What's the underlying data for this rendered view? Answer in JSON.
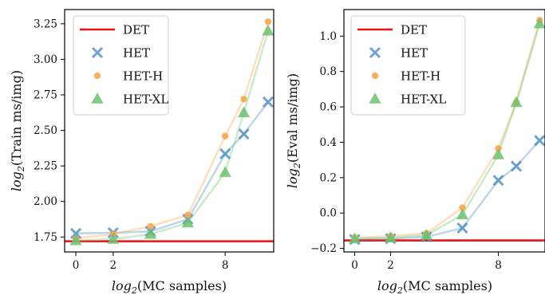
{
  "chart_data": [
    {
      "type": "line",
      "xlabel": "log2(MC samples)",
      "ylabel": "log2(Train ms/img)",
      "xlim": [
        -0.6,
        10.6
      ],
      "ylim": [
        1.645,
        3.35
      ],
      "xticks": [
        0,
        2,
        8
      ],
      "yticks": [
        1.75,
        2.0,
        2.25,
        2.5,
        2.75,
        3.0,
        3.25
      ],
      "ytick_labels": [
        "1.75",
        "2.00",
        "2.25",
        "2.50",
        "2.75",
        "3.00",
        "3.25"
      ],
      "legend_position": "top-left",
      "series": [
        {
          "name": "DET",
          "style": "hline",
          "color": "#ee1111",
          "y": 1.72
        },
        {
          "name": "HET",
          "style": "x",
          "color": "#4a8cc4",
          "x": [
            0,
            2,
            4,
            6,
            8,
            9,
            10.3
          ],
          "y": [
            1.775,
            1.78,
            1.79,
            1.875,
            2.335,
            2.475,
            2.7
          ]
        },
        {
          "name": "HET-H",
          "style": "o",
          "color": "#f7a64d",
          "x": [
            0,
            2,
            4,
            6,
            8,
            9,
            10.3
          ],
          "y": [
            1.74,
            1.77,
            1.825,
            1.905,
            2.46,
            2.72,
            3.265
          ]
        },
        {
          "name": "HET-XL",
          "style": "^",
          "color": "#6cc26c",
          "x": [
            0,
            2,
            4,
            6,
            8,
            9,
            10.3
          ],
          "y": [
            1.725,
            1.735,
            1.77,
            1.85,
            2.205,
            2.625,
            3.2
          ]
        }
      ]
    },
    {
      "type": "line",
      "xlabel": "log2(MC samples)",
      "ylabel": "log2(Eval ms/img)",
      "xlim": [
        -0.6,
        10.6
      ],
      "ylim": [
        -0.22,
        1.15
      ],
      "xticks": [
        0,
        2,
        8
      ],
      "yticks": [
        -0.2,
        0.0,
        0.2,
        0.4,
        0.6,
        0.8,
        1.0
      ],
      "ytick_labels": [
        "−0.2",
        "0.0",
        "0.2",
        "0.4",
        "0.6",
        "0.8",
        "1.0"
      ],
      "legend_position": "top-left",
      "series": [
        {
          "name": "DET",
          "style": "hline",
          "color": "#ee1111",
          "y": -0.155
        },
        {
          "name": "HET",
          "style": "x",
          "color": "#4a8cc4",
          "x": [
            0,
            2,
            4,
            6,
            8,
            9,
            10.3
          ],
          "y": [
            -0.15,
            -0.145,
            -0.135,
            -0.085,
            0.185,
            0.265,
            0.41
          ]
        },
        {
          "name": "HET-H",
          "style": "o",
          "color": "#f7a64d",
          "x": [
            0,
            2,
            4,
            6,
            8,
            9,
            10.3
          ],
          "y": [
            -0.14,
            -0.13,
            -0.115,
            0.03,
            0.365,
            0.625,
            1.09
          ]
        },
        {
          "name": "HET-XL",
          "style": "^",
          "color": "#6cc26c",
          "x": [
            0,
            2,
            4,
            6,
            8,
            9,
            10.3
          ],
          "y": [
            -0.145,
            -0.14,
            -0.125,
            -0.01,
            0.33,
            0.625,
            1.07
          ]
        }
      ]
    }
  ]
}
